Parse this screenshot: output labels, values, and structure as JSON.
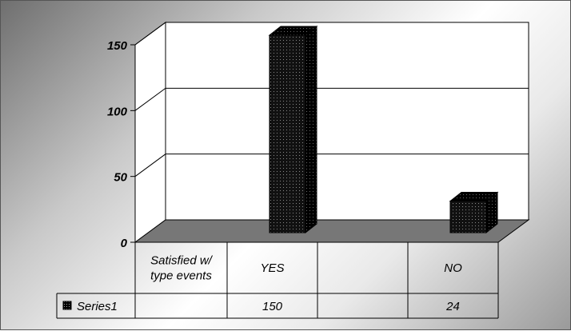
{
  "chart_data": {
    "type": "bar",
    "title": "",
    "xlabel": "",
    "ylabel": "",
    "ylim": [
      0,
      150
    ],
    "yticks": [
      0,
      50,
      100,
      150
    ],
    "categories": [
      "Satisfied w/ type events",
      "YES",
      "",
      "NO"
    ],
    "series": [
      {
        "name": "Series1",
        "values": [
          null,
          150,
          null,
          24
        ]
      }
    ],
    "table_labels": [
      "",
      "150",
      "",
      "24"
    ],
    "grid": true,
    "legend": "data-table-left",
    "bar_color": "#111111",
    "floor_color": "#777777"
  }
}
